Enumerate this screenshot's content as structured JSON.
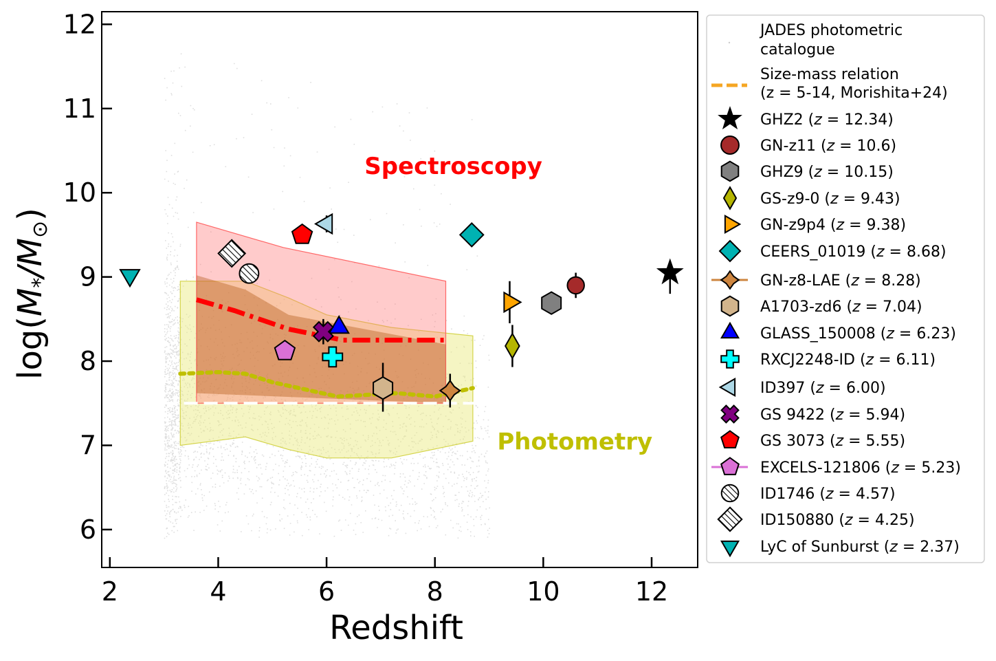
{
  "chart_data": {
    "type": "scatter",
    "xlabel": "Redshift",
    "ylabel": "log(M*/M⊙)",
    "ylabel_main": "log(",
    "ylabel_M": "M",
    "ylabel_star": "*",
    "ylabel_slash": "/",
    "ylabel_M2": "M",
    "ylabel_sun": "⊙",
    "ylabel_close": ")",
    "xlim": [
      1.85,
      12.85
    ],
    "ylim": [
      5.55,
      12.15
    ],
    "xticks": [
      2,
      4,
      6,
      8,
      10,
      12
    ],
    "yticks": [
      6,
      7,
      8,
      9,
      10,
      11,
      12
    ],
    "annotations": [
      {
        "text": "Spectroscopy",
        "x": 6.7,
        "y": 10.32,
        "color": "#ff0000"
      },
      {
        "text": "Photometry",
        "x": 9.15,
        "y": 7.05,
        "color": "#bfbf00"
      }
    ],
    "background": {
      "name": "JADES photometric catalogue",
      "x_range": [
        3.0,
        9.0
      ],
      "y_center": 7.5,
      "y_spread": 1.0
    },
    "spectroscopy_band": {
      "x": [
        3.6,
        5.2,
        8.2
      ],
      "upper": [
        9.65,
        9.35,
        8.95
      ],
      "lower": [
        7.5,
        7.5,
        7.5
      ],
      "color": "#ff9999"
    },
    "photometry_band": {
      "x": [
        3.3,
        4.5,
        5.3,
        6.0,
        7.2,
        8.7
      ],
      "upper": [
        8.95,
        8.95,
        8.75,
        8.55,
        8.4,
        8.3
      ],
      "lower": [
        7.0,
        7.1,
        6.95,
        6.85,
        6.85,
        7.05
      ],
      "color": "#f0f0a0"
    },
    "overlap_upper": {
      "x": [
        3.6,
        4.5,
        5.3,
        8.2
      ],
      "y": [
        9.02,
        8.85,
        8.55,
        8.2
      ]
    },
    "series": [
      {
        "name": "Spectroscopy median",
        "style": "dashdot",
        "color": "#ff0000",
        "x": [
          3.6,
          4.3,
          5.3,
          6.3,
          7.0,
          8.2
        ],
        "y": [
          8.73,
          8.6,
          8.38,
          8.25,
          8.25,
          8.25
        ]
      },
      {
        "name": "Photometry median",
        "style": "dotted",
        "color": "#bfbf00",
        "x": [
          3.3,
          4.0,
          4.5,
          5.0,
          6.2,
          7.3,
          8.0,
          8.7
        ],
        "y": [
          7.85,
          7.87,
          7.85,
          7.75,
          7.58,
          7.62,
          7.58,
          7.68
        ]
      },
      {
        "name": "Mass limit",
        "style": "dashed",
        "color": "#ffffff",
        "x": [
          3.0,
          9.0
        ],
        "y": [
          7.5,
          7.5
        ]
      }
    ],
    "legend": [
      {
        "label": "JADES photometric catalogue",
        "marker": "dot",
        "color": "#cccccc"
      },
      {
        "label": "Size-mass relation (z = 5-14, Morishita+24)",
        "marker": "dash-line",
        "color": "#f5a623"
      },
      {
        "label": "GHZ2 (z = 12.34)",
        "marker": "star",
        "color": "#000000"
      },
      {
        "label": "GN-z11 (z = 10.6)",
        "marker": "circle",
        "color": "#a52a2a"
      },
      {
        "label": "GHZ9 (z = 10.15)",
        "marker": "hexagon",
        "color": "#808080"
      },
      {
        "label": "GS-z9-0 (z = 9.43)",
        "marker": "thin-diamond",
        "color": "#b5b500"
      },
      {
        "label": "GN-z9p4 (z = 9.38)",
        "marker": "triangle-right",
        "color": "#ffa500"
      },
      {
        "label": "CEERS_01019 (z = 8.68)",
        "marker": "diamond",
        "color": "#00b2b2"
      },
      {
        "label": "GN-z8-LAE (z = 8.28)",
        "marker": "star4",
        "color": "#cd853f"
      },
      {
        "label": "A1703-zd6 (z = 7.04)",
        "marker": "hexagon",
        "color": "#d2b48c"
      },
      {
        "label": "GLASS_150008 (z = 6.23)",
        "marker": "triangle-up",
        "color": "#0000ff"
      },
      {
        "label": "RXCJ2248-ID (z = 6.11)",
        "marker": "plus",
        "color": "#00ffff"
      },
      {
        "label": "ID397 (z = 6.00)",
        "marker": "triangle-left",
        "color": "#add8e6"
      },
      {
        "label": "GS 9422 (z = 5.94)",
        "marker": "x",
        "color": "#800080"
      },
      {
        "label": "GS 3073 (z = 5.55)",
        "marker": "pentagon",
        "color": "#ff0000"
      },
      {
        "label": "EXCELS-121806 (z = 5.23)",
        "marker": "pentagon",
        "color": "#da70d6"
      },
      {
        "label": "ID1746 (z = 4.57)",
        "marker": "circle-hatched",
        "color": "#ffffff"
      },
      {
        "label": "ID150880 (z = 4.25)",
        "marker": "diamond-hatched",
        "color": "#ffffff"
      },
      {
        "label": "LyC of Sunburst (z = 2.37)",
        "marker": "triangle-down",
        "color": "#00b2b2"
      }
    ],
    "points": [
      {
        "name": "GHZ2",
        "x": 12.34,
        "y": 9.05,
        "err_lo": 0.25,
        "err_hi": 0.1,
        "marker": "star",
        "color": "#000000"
      },
      {
        "name": "GN-z11",
        "x": 10.6,
        "y": 8.9,
        "err_lo": 0.15,
        "err_hi": 0.15,
        "marker": "circle",
        "color": "#a52a2a"
      },
      {
        "name": "GHZ9",
        "x": 10.15,
        "y": 8.69,
        "err_lo": 0.0,
        "err_hi": 0.0,
        "marker": "hexagon",
        "color": "#808080"
      },
      {
        "name": "GS-z9-0",
        "x": 9.43,
        "y": 8.18,
        "err_lo": 0.25,
        "err_hi": 0.25,
        "marker": "thin-diamond",
        "color": "#b5b500"
      },
      {
        "name": "GN-z9p4",
        "x": 9.38,
        "y": 8.7,
        "err_lo": 0.25,
        "err_hi": 0.25,
        "marker": "triangle-right",
        "color": "#ffa500"
      },
      {
        "name": "CEERS_01019",
        "x": 8.68,
        "y": 9.5,
        "err_lo": 0.0,
        "err_hi": 0.0,
        "marker": "diamond",
        "color": "#00b2b2"
      },
      {
        "name": "GN-z8-LAE",
        "x": 8.28,
        "y": 7.65,
        "err_lo": 0.2,
        "err_hi": 0.2,
        "marker": "star4",
        "color": "#cd853f"
      },
      {
        "name": "A1703-zd6",
        "x": 7.04,
        "y": 7.68,
        "err_lo": 0.28,
        "err_hi": 0.3,
        "marker": "hexagon",
        "color": "#d2b48c"
      },
      {
        "name": "GLASS_150008",
        "x": 6.23,
        "y": 8.4,
        "err_lo": 0.0,
        "err_hi": 0.0,
        "marker": "triangle-up",
        "color": "#0000ff"
      },
      {
        "name": "RXCJ2248-ID",
        "x": 6.11,
        "y": 8.05,
        "err_lo": 0.0,
        "err_hi": 0.0,
        "marker": "plus",
        "color": "#00ffff"
      },
      {
        "name": "ID397",
        "x": 6.0,
        "y": 9.63,
        "err_lo": 0.1,
        "err_hi": 0.1,
        "marker": "triangle-left",
        "color": "#add8e6"
      },
      {
        "name": "GS 9422",
        "x": 5.94,
        "y": 8.35,
        "err_lo": 0.15,
        "err_hi": 0.15,
        "marker": "x",
        "color": "#800080"
      },
      {
        "name": "GS 3073",
        "x": 5.55,
        "y": 9.5,
        "err_lo": 0.0,
        "err_hi": 0.0,
        "marker": "pentagon",
        "color": "#ff0000"
      },
      {
        "name": "EXCELS-121806",
        "x": 5.23,
        "y": 8.12,
        "err_lo": 0.0,
        "err_hi": 0.0,
        "marker": "pentagon",
        "color": "#da70d6"
      },
      {
        "name": "ID1746",
        "x": 4.57,
        "y": 9.04,
        "err_lo": 0.0,
        "err_hi": 0.0,
        "marker": "circle-hatched",
        "color": "#ffffff"
      },
      {
        "name": "ID150880",
        "x": 4.25,
        "y": 9.28,
        "err_lo": 0.0,
        "err_hi": 0.0,
        "marker": "diamond-hatched",
        "color": "#ffffff"
      },
      {
        "name": "LyC of Sunburst",
        "x": 2.37,
        "y": 9.02,
        "err_lo": 0.0,
        "err_hi": 0.0,
        "marker": "triangle-down",
        "color": "#00b2b2"
      }
    ]
  }
}
